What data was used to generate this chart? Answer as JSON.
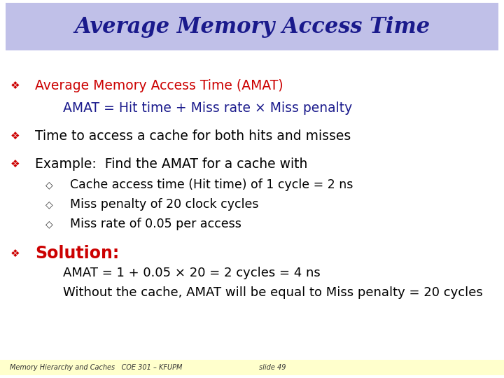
{
  "title": "Average Memory Access Time",
  "title_bg": "#c0c0e8",
  "title_color": "#1a1a8c",
  "slide_bg": "#ffffff",
  "footer_bg": "#ffffcc",
  "footer_left": "Memory Hierarchy and Caches   COE 301 – KFUPM",
  "footer_right": "slide 49",
  "bullet_color": "#cc0000",
  "text_color": "#000000",
  "blue_color": "#1a1a8c",
  "lines": [
    {
      "type": "bullet",
      "level": 0,
      "color": "#cc0000",
      "text": "Average Memory Access Time (AMAT)",
      "bold": false,
      "size": 13.5
    },
    {
      "type": "plain",
      "level": 1,
      "color": "#1a1a8c",
      "text": "AMAT = Hit time + Miss rate × Miss penalty",
      "bold": false,
      "size": 13.5
    },
    {
      "type": "bullet",
      "level": 0,
      "color": "#000000",
      "text": "Time to access a cache for both hits and misses",
      "bold": false,
      "size": 13.5
    },
    {
      "type": "bullet",
      "level": 0,
      "color": "#000000",
      "text": "Example:  Find the AMAT for a cache with",
      "bold": false,
      "size": 13.5
    },
    {
      "type": "diamond",
      "level": 1,
      "color": "#000000",
      "text": "Cache access time (Hit time) of 1 cycle = 2 ns",
      "bold": false,
      "size": 12.5
    },
    {
      "type": "diamond",
      "level": 1,
      "color": "#000000",
      "text": "Miss penalty of 20 clock cycles",
      "bold": false,
      "size": 12.5
    },
    {
      "type": "diamond",
      "level": 1,
      "color": "#000000",
      "text": "Miss rate of 0.05 per access",
      "bold": false,
      "size": 12.5
    },
    {
      "type": "bullet",
      "level": 0,
      "color": "#cc0000",
      "text": "Solution:",
      "bold": true,
      "size": 17.0
    },
    {
      "type": "plain",
      "level": 1,
      "color": "#000000",
      "text": "AMAT = 1 + 0.05 × 20 = 2 cycles = 4 ns",
      "bold": false,
      "size": 13.0
    },
    {
      "type": "plain",
      "level": 1,
      "color": "#000000",
      "text": "Without the cache, AMAT will be equal to Miss penalty = 20 cycles",
      "bold": false,
      "size": 13.0
    }
  ],
  "line_gaps": [
    42,
    32,
    40,
    40,
    30,
    28,
    28,
    42,
    28,
    28
  ]
}
